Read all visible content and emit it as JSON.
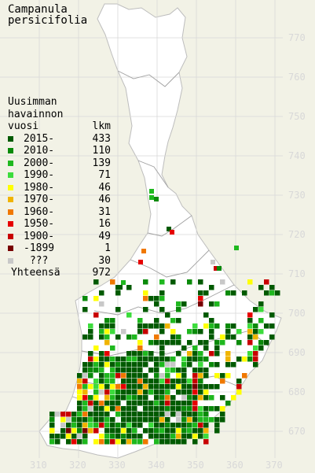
{
  "title": {
    "line1": "Campanula",
    "line2": "persicifolia"
  },
  "legend": {
    "header": [
      "Uusimman",
      "havainnon",
      "vuosi"
    ],
    "count_header": "lkm",
    "rows": [
      {
        "label": "2015-",
        "count": "433",
        "color": "#005a00"
      },
      {
        "label": "2010-",
        "count": "110",
        "color": "#0a8a0a"
      },
      {
        "label": "2000-",
        "count": "139",
        "color": "#1fb81f"
      },
      {
        "label": "1990-",
        "count": "71",
        "color": "#3cdc3c"
      },
      {
        "label": "1980-",
        "count": "46",
        "color": "#ffff00"
      },
      {
        "label": "1970-",
        "count": "46",
        "color": "#f0b400"
      },
      {
        "label": "1960-",
        "count": "31",
        "color": "#f07800"
      },
      {
        "label": "1950-",
        "count": "16",
        "color": "#e60000"
      },
      {
        "label": "1900-",
        "count": "49",
        "color": "#c80000"
      },
      {
        "label": "-1899",
        "count": "1",
        "color": "#780000"
      },
      {
        "label": " ???",
        "count": "30",
        "color": "#c8c8c8"
      }
    ],
    "total": {
      "label": "Yhteensä",
      "count": "972"
    }
  },
  "axes": {
    "y_ticks": [
      "770",
      "760",
      "750",
      "740",
      "730",
      "720",
      "710",
      "700",
      "690",
      "680",
      "670"
    ],
    "x_ticks": [
      "310",
      "320",
      "330",
      "340",
      "350",
      "360",
      "370"
    ]
  },
  "colors": {
    "background": "#f2f2e6",
    "land": "#ffffff",
    "grid": "#d8d8d8",
    "border": "#a0a0a0"
  }
}
